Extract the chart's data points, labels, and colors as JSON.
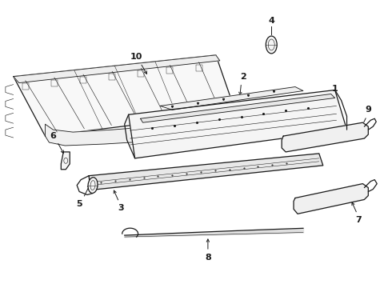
{
  "background_color": "#ffffff",
  "line_color": "#1a1a1a",
  "label_color": "#111111",
  "figsize": [
    4.9,
    3.6
  ],
  "dpi": 100
}
